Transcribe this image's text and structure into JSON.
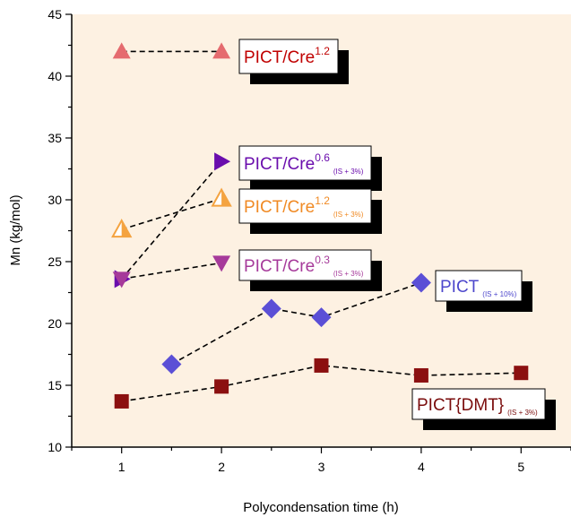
{
  "chart_data": {
    "type": "scatter",
    "xlabel": "Polycondensation time (h)",
    "ylabel": "Mn (kg/mol)",
    "xlim": [
      0.5,
      5.5
    ],
    "ylim": [
      10,
      45
    ],
    "xticks": [
      "1",
      "2",
      "3",
      "4",
      "5"
    ],
    "yticks": [
      "10",
      "15",
      "20",
      "25",
      "30",
      "35",
      "40",
      "45"
    ],
    "background": "#fdf1e2",
    "grid": false,
    "series": [
      {
        "key": "cre12a",
        "marker": "triangle-up",
        "color": "#e56b6f",
        "x": [
          1,
          2
        ],
        "y": [
          42.0,
          42.0
        ],
        "label": {
          "base": "PICT/Cre",
          "sup": "1.2",
          "sub": "",
          "color": "#c00000"
        }
      },
      {
        "key": "cre06",
        "marker": "triangle-right",
        "color": "#6a0dad",
        "x": [
          1,
          2
        ],
        "y": [
          23.6,
          33.1
        ],
        "label": {
          "base": "PICT/Cre",
          "sup": "0.6",
          "sub": "(IS + 3%)",
          "color": "#6a0dad"
        }
      },
      {
        "key": "cre12b",
        "marker": "triangle-up-half",
        "color": "#f4a340",
        "x": [
          1,
          2
        ],
        "y": [
          27.6,
          30.1
        ],
        "label": {
          "base": "PICT/Cre",
          "sup": "1.2",
          "sub": "(IS + 3%)",
          "color": "#f08a24"
        }
      },
      {
        "key": "cre03",
        "marker": "triangle-down",
        "color": "#a63a9a",
        "x": [
          1,
          2
        ],
        "y": [
          23.6,
          24.9
        ],
        "label": {
          "base": "PICT/Cre",
          "sup": "0.3",
          "sub": "(IS + 3%)",
          "color": "#a63a9a"
        }
      },
      {
        "key": "pict",
        "marker": "diamond",
        "color": "#5b4fd6",
        "x": [
          1.5,
          2.5,
          3,
          4
        ],
        "y": [
          16.7,
          21.2,
          20.5,
          23.3
        ],
        "label": {
          "base": "PICT",
          "sup": "",
          "sub": "(IS + 10%)",
          "color": "#4d47cc"
        }
      },
      {
        "key": "dmt",
        "marker": "square",
        "color": "#8b1010",
        "x": [
          1,
          2,
          3,
          4,
          5
        ],
        "y": [
          13.7,
          14.9,
          16.6,
          15.8,
          16.0
        ],
        "label": {
          "base": "PICT{DMT}",
          "sup": "",
          "sub": "(IS + 3%)",
          "color": "#7a0c0c"
        }
      }
    ]
  }
}
